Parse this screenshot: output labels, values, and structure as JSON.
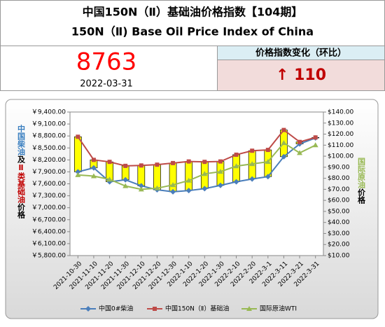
{
  "header": {
    "title_cn": "中国150N（Ⅱ）基础油价格指数【104期】",
    "title_en": "150N（Ⅱ) Base Oil Price Index of China"
  },
  "index": {
    "value": "8763",
    "date": "2022-03-31"
  },
  "change": {
    "label": "价格指数变化（环比）",
    "value": "↑ 110"
  },
  "chart_data": {
    "type": "line",
    "y_label": [
      "中国柴油",
      "及",
      "Ⅱ类基础油",
      "价格"
    ],
    "y2_label": [
      "国际原油",
      "价格"
    ],
    "categories": [
      "2021-10-30",
      "2021-11-10",
      "2021-11-20",
      "2021-11-30",
      "2021-12-10",
      "2021-12-20",
      "2021-12-30",
      "2022-1-10",
      "2022-1-20",
      "2022-1-30",
      "2022-2-10",
      "2022-2-20",
      "2022-3-1",
      "2022-3-11",
      "2022-3-21",
      "2022-3-31"
    ],
    "series": [
      {
        "name": "中国0#柴油",
        "color": "#4a7ebb",
        "marker": "diamond",
        "values": [
          7900,
          8000,
          7650,
          7700,
          7550,
          7450,
          7400,
          7430,
          7480,
          7560,
          7650,
          7720,
          7780,
          8280,
          8600,
          8750
        ]
      },
      {
        "name": "中国150N（Ⅱ）基础油",
        "color": "#be4b48",
        "marker": "square",
        "values": [
          8780,
          8200,
          8150,
          8050,
          8060,
          8080,
          8120,
          8160,
          8150,
          8160,
          8330,
          8430,
          8450,
          8950,
          8650,
          8763
        ]
      },
      {
        "name": "国际原油WTI",
        "color": "#98b954",
        "marker": "triangle",
        "axis": "y2",
        "values": [
          83,
          82,
          79,
          73,
          70,
          71,
          74,
          78,
          84,
          86,
          91,
          93,
          95,
          112,
          103,
          110
        ]
      }
    ],
    "bar_color": "#ffff00",
    "ylim": [
      5800,
      9400
    ],
    "yticks": [
      {
        "value": 5800,
        "label": "￥5,800.00"
      },
      {
        "value": 6100,
        "label": "￥6,100.00"
      },
      {
        "value": 6400,
        "label": "￥6,400.00"
      },
      {
        "value": 6700,
        "label": "￥6,700.00"
      },
      {
        "value": 7000,
        "label": "￥7,000.00"
      },
      {
        "value": 7300,
        "label": "￥7,300.00"
      },
      {
        "value": 7600,
        "label": "￥7,600.00"
      },
      {
        "value": 7900,
        "label": "￥7,900.00"
      },
      {
        "value": 8200,
        "label": "￥8,200.00"
      },
      {
        "value": 8500,
        "label": "￥8,500.00"
      },
      {
        "value": 8800,
        "label": "￥8,800.00"
      },
      {
        "value": 9100,
        "label": "￥9,100.00"
      },
      {
        "value": 9400,
        "label": "￥9,400.00"
      }
    ],
    "y2lim": [
      10,
      140
    ],
    "y2ticks": [
      {
        "value": 10,
        "label": "$10.00"
      },
      {
        "value": 20,
        "label": "$20.00"
      },
      {
        "value": 30,
        "label": "$30.00"
      },
      {
        "value": 40,
        "label": "$40.00"
      },
      {
        "value": 50,
        "label": "$50.00"
      },
      {
        "value": 60,
        "label": "$60.00"
      },
      {
        "value": 70,
        "label": "$70.00"
      },
      {
        "value": 80,
        "label": "$80.00"
      },
      {
        "value": 90,
        "label": "$90.00"
      },
      {
        "value": 100,
        "label": "$100.00"
      },
      {
        "value": 110,
        "label": "$110.00"
      },
      {
        "value": 120,
        "label": "$120.00"
      },
      {
        "value": 130,
        "label": "$130.00"
      },
      {
        "value": 140,
        "label": "$140.00"
      }
    ]
  }
}
